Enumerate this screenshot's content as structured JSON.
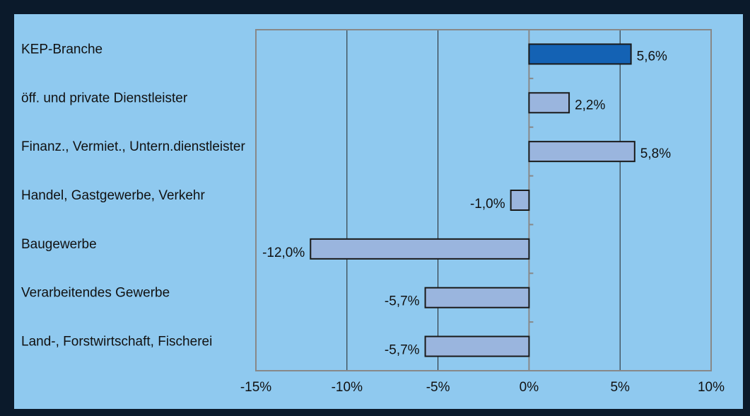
{
  "chart_data": {
    "type": "hbar",
    "categories": [
      "KEP-Branche",
      "öff. und private Dienstleister",
      "Finanz., Vermiet., Untern.dienstleister",
      "Handel, Gastgewerbe, Verkehr",
      "Baugewerbe",
      "Verarbeitendes Gewerbe",
      "Land-, Forstwirtschaft, Fischerei"
    ],
    "values": [
      5.6,
      2.2,
      5.8,
      -1.0,
      -12.0,
      -5.7,
      -5.7
    ],
    "value_labels": [
      "5,6%",
      "2,2%",
      "5,8%",
      "-1,0%",
      "-12,0%",
      "-5,7%",
      "-5,7%"
    ],
    "colors": [
      "#1462b4",
      "#9ab5de",
      "#9ab5de",
      "#9ab5de",
      "#9ab5de",
      "#9ab5de",
      "#9ab5de"
    ],
    "xlim": [
      -15,
      10
    ],
    "xticks": [
      {
        "value": -15,
        "label": "-15%"
      },
      {
        "value": -10,
        "label": "-10%"
      },
      {
        "value": -5,
        "label": "-5%"
      },
      {
        "value": 0,
        "label": "0%"
      },
      {
        "value": 5,
        "label": "5%"
      },
      {
        "value": 10,
        "label": "10%"
      }
    ],
    "grid": true
  }
}
